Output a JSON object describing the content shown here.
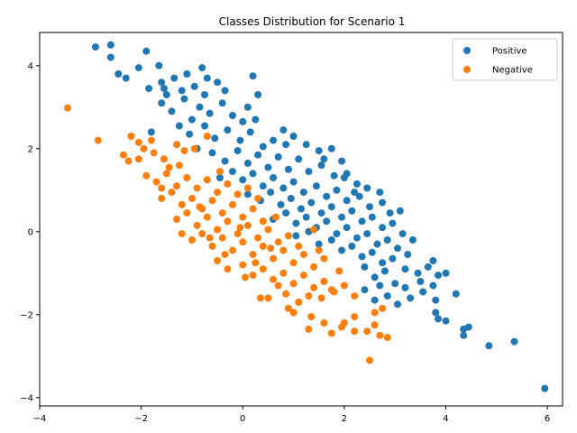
{
  "chart_data": {
    "type": "scatter",
    "title": "Classes Distribution for Scenario 1",
    "xlabel": "",
    "ylabel": "",
    "xlim": [
      -4,
      6.3
    ],
    "ylim": [
      -4.2,
      4.8
    ],
    "xticks": [
      -4,
      -2,
      0,
      2,
      4,
      6
    ],
    "yticks": [
      -4,
      -2,
      0,
      2,
      4
    ],
    "grid": false,
    "legend_position": "top-right",
    "series": [
      {
        "name": "Positive",
        "color": "#1f77b4",
        "points": [
          [
            -2.9,
            4.45
          ],
          [
            -2.6,
            4.5
          ],
          [
            -2.6,
            4.2
          ],
          [
            -2.45,
            3.8
          ],
          [
            -2.3,
            3.7
          ],
          [
            -2.05,
            3.95
          ],
          [
            -1.9,
            4.35
          ],
          [
            -1.85,
            3.45
          ],
          [
            -1.65,
            4.0
          ],
          [
            -1.6,
            3.6
          ],
          [
            -1.55,
            3.45
          ],
          [
            -1.5,
            3.3
          ],
          [
            -1.35,
            3.7
          ],
          [
            -1.2,
            3.4
          ],
          [
            -1.1,
            3.8
          ],
          [
            -0.95,
            3.5
          ],
          [
            -0.8,
            3.95
          ],
          [
            -0.7,
            3.7
          ],
          [
            -0.5,
            3.6
          ],
          [
            -0.35,
            3.4
          ],
          [
            0.2,
            3.75
          ],
          [
            0.3,
            3.3
          ],
          [
            -1.8,
            2.4
          ],
          [
            -1.6,
            3.1
          ],
          [
            -1.4,
            2.9
          ],
          [
            -1.15,
            3.2
          ],
          [
            -1.0,
            2.7
          ],
          [
            -0.85,
            3.0
          ],
          [
            -0.65,
            2.85
          ],
          [
            -0.4,
            3.1
          ],
          [
            -0.2,
            2.8
          ],
          [
            0.1,
            3.0
          ],
          [
            0.25,
            2.7
          ],
          [
            -1.3,
            2.1
          ],
          [
            -1.05,
            2.35
          ],
          [
            -0.9,
            2.0
          ],
          [
            -0.75,
            2.55
          ],
          [
            -0.55,
            2.25
          ],
          [
            -0.3,
            2.45
          ],
          [
            -0.05,
            2.2
          ],
          [
            0.15,
            2.4
          ],
          [
            0.4,
            2.05
          ],
          [
            0.6,
            2.2
          ],
          [
            0.85,
            2.1
          ],
          [
            1.0,
            2.3
          ],
          [
            1.25,
            2.1
          ],
          [
            1.5,
            1.95
          ],
          [
            1.75,
            2.0
          ],
          [
            1.95,
            1.7
          ],
          [
            -0.6,
            1.9
          ],
          [
            -0.35,
            1.7
          ],
          [
            -0.1,
            1.95
          ],
          [
            0.1,
            1.65
          ],
          [
            0.3,
            1.85
          ],
          [
            0.5,
            1.55
          ],
          [
            0.7,
            1.8
          ],
          [
            0.9,
            1.5
          ],
          [
            1.1,
            1.75
          ],
          [
            1.3,
            1.45
          ],
          [
            1.55,
            1.6
          ],
          [
            1.8,
            1.35
          ],
          [
            2.05,
            1.4
          ],
          [
            2.25,
            1.15
          ],
          [
            2.45,
            1.05
          ],
          [
            2.7,
            0.95
          ],
          [
            -0.45,
            1.3
          ],
          [
            -0.2,
            1.45
          ],
          [
            0.0,
            1.25
          ],
          [
            0.2,
            1.4
          ],
          [
            0.4,
            1.1
          ],
          [
            0.6,
            1.3
          ],
          [
            0.8,
            1.05
          ],
          [
            1.0,
            1.2
          ],
          [
            1.2,
            0.95
          ],
          [
            1.45,
            1.1
          ],
          [
            1.65,
            0.85
          ],
          [
            1.85,
            1.0
          ],
          [
            2.05,
            0.75
          ],
          [
            2.3,
            0.85
          ],
          [
            2.5,
            0.6
          ],
          [
            2.75,
            0.7
          ],
          [
            2.9,
            0.45
          ],
          [
            3.1,
            0.5
          ],
          [
            0.1,
            0.9
          ],
          [
            0.35,
            0.75
          ],
          [
            0.55,
            0.95
          ],
          [
            0.75,
            0.65
          ],
          [
            0.95,
            0.8
          ],
          [
            1.15,
            0.55
          ],
          [
            1.35,
            0.7
          ],
          [
            1.55,
            0.45
          ],
          [
            1.75,
            0.6
          ],
          [
            1.95,
            0.35
          ],
          [
            2.15,
            0.5
          ],
          [
            2.35,
            0.25
          ],
          [
            2.55,
            0.35
          ],
          [
            2.75,
            0.1
          ],
          [
            2.95,
            0.2
          ],
          [
            3.15,
            -0.05
          ],
          [
            3.35,
            -0.2
          ],
          [
            0.6,
            0.3
          ],
          [
            0.85,
            0.45
          ],
          [
            1.05,
            0.2
          ],
          [
            1.25,
            0.35
          ],
          [
            1.45,
            0.1
          ],
          [
            1.65,
            0.25
          ],
          [
            1.85,
            -0.05
          ],
          [
            2.05,
            0.1
          ],
          [
            2.25,
            -0.15
          ],
          [
            2.45,
            -0.05
          ],
          [
            2.65,
            -0.3
          ],
          [
            2.85,
            -0.2
          ],
          [
            3.05,
            -0.4
          ],
          [
            3.25,
            -0.55
          ],
          [
            1.5,
            -0.3
          ],
          [
            1.75,
            -0.2
          ],
          [
            1.95,
            -0.45
          ],
          [
            2.15,
            -0.35
          ],
          [
            2.35,
            -0.6
          ],
          [
            2.55,
            -0.5
          ],
          [
            2.75,
            -0.75
          ],
          [
            2.95,
            -0.65
          ],
          [
            3.2,
            -0.9
          ],
          [
            3.45,
            -1.0
          ],
          [
            3.65,
            -0.85
          ],
          [
            3.85,
            -1.05
          ],
          [
            2.4,
            -0.85
          ],
          [
            2.6,
            -1.1
          ],
          [
            2.8,
            -0.95
          ],
          [
            3.0,
            -1.25
          ],
          [
            3.2,
            -1.35
          ],
          [
            3.5,
            -1.2
          ],
          [
            3.75,
            -1.3
          ],
          [
            4.0,
            -1.0
          ],
          [
            4.2,
            -1.5
          ],
          [
            2.4,
            -1.4
          ],
          [
            2.6,
            -1.65
          ],
          [
            2.85,
            -1.55
          ],
          [
            3.05,
            -1.75
          ],
          [
            3.3,
            -1.6
          ],
          [
            3.8,
            -1.65
          ],
          [
            3.8,
            -1.95
          ],
          [
            3.85,
            -2.1
          ],
          [
            4.0,
            -2.15
          ],
          [
            4.35,
            -2.35
          ],
          [
            4.45,
            -2.3
          ],
          [
            4.35,
            -2.5
          ],
          [
            4.85,
            -2.75
          ],
          [
            5.35,
            -2.65
          ],
          [
            5.95,
            -3.78
          ],
          [
            3.75,
            -0.7
          ],
          [
            2.2,
            0.95
          ],
          [
            1.6,
            1.75
          ],
          [
            0.8,
            2.45
          ],
          [
            0.0,
            2.65
          ],
          [
            -0.75,
            3.3
          ],
          [
            -1.25,
            2.55
          ],
          [
            1.3,
            0.0
          ],
          [
            1.05,
            -0.1
          ],
          [
            2.0,
            1.3
          ],
          [
            2.7,
            -1.3
          ],
          [
            3.55,
            -1.45
          ]
        ]
      },
      {
        "name": "Negative",
        "color": "#ff7f0e",
        "points": [
          [
            -3.45,
            2.98
          ],
          [
            -2.85,
            2.2
          ],
          [
            -2.2,
            2.3
          ],
          [
            -2.05,
            2.15
          ],
          [
            -1.95,
            2.0
          ],
          [
            -2.35,
            1.85
          ],
          [
            -2.25,
            1.7
          ],
          [
            -2.05,
            1.75
          ],
          [
            -1.75,
            1.9
          ],
          [
            -1.55,
            1.75
          ],
          [
            -1.3,
            2.1
          ],
          [
            -1.15,
            1.95
          ],
          [
            -0.95,
            2.0
          ],
          [
            -0.7,
            2.3
          ],
          [
            -1.8,
            2.2
          ],
          [
            -1.9,
            1.35
          ],
          [
            -1.7,
            1.2
          ],
          [
            -1.5,
            1.4
          ],
          [
            -1.3,
            1.1
          ],
          [
            -1.1,
            1.3
          ],
          [
            -0.9,
            1.05
          ],
          [
            -0.7,
            1.25
          ],
          [
            -0.5,
            0.95
          ],
          [
            -0.3,
            1.15
          ],
          [
            -0.1,
            0.9
          ],
          [
            0.1,
            1.05
          ],
          [
            -1.6,
            0.8
          ],
          [
            -1.4,
            0.95
          ],
          [
            -1.2,
            0.65
          ],
          [
            -1.0,
            0.8
          ],
          [
            -0.8,
            0.55
          ],
          [
            -0.6,
            0.75
          ],
          [
            -0.4,
            0.45
          ],
          [
            -0.2,
            0.65
          ],
          [
            0.0,
            0.35
          ],
          [
            0.2,
            0.55
          ],
          [
            0.4,
            0.25
          ],
          [
            -1.3,
            0.3
          ],
          [
            -1.1,
            0.45
          ],
          [
            -0.9,
            0.15
          ],
          [
            -0.7,
            0.35
          ],
          [
            -0.5,
            0.05
          ],
          [
            -0.3,
            0.25
          ],
          [
            -0.1,
            -0.05
          ],
          [
            0.1,
            0.15
          ],
          [
            0.3,
            -0.15
          ],
          [
            0.5,
            0.05
          ],
          [
            0.7,
            -0.25
          ],
          [
            0.9,
            -0.1
          ],
          [
            1.1,
            -0.35
          ],
          [
            -1.0,
            -0.2
          ],
          [
            -0.8,
            -0.05
          ],
          [
            -0.6,
            -0.35
          ],
          [
            -0.4,
            -0.15
          ],
          [
            -0.2,
            -0.45
          ],
          [
            0.0,
            -0.25
          ],
          [
            0.2,
            -0.55
          ],
          [
            0.4,
            -0.35
          ],
          [
            0.6,
            -0.65
          ],
          [
            0.8,
            -0.45
          ],
          [
            1.0,
            -0.75
          ],
          [
            1.2,
            -0.55
          ],
          [
            1.4,
            -0.85
          ],
          [
            1.6,
            -0.65
          ],
          [
            -0.5,
            -0.7
          ],
          [
            -0.3,
            -0.9
          ],
          [
            0.0,
            -0.8
          ],
          [
            0.2,
            -1.05
          ],
          [
            0.4,
            -0.9
          ],
          [
            0.6,
            -1.15
          ],
          [
            0.8,
            -1.0
          ],
          [
            1.0,
            -1.25
          ],
          [
            1.2,
            -1.05
          ],
          [
            1.4,
            -1.35
          ],
          [
            1.6,
            -1.2
          ],
          [
            1.8,
            -1.45
          ],
          [
            2.0,
            -1.3
          ],
          [
            2.2,
            -1.55
          ],
          [
            0.35,
            -1.6
          ],
          [
            0.5,
            -1.6
          ],
          [
            0.85,
            -1.5
          ],
          [
            1.1,
            -1.7
          ],
          [
            1.3,
            -1.55
          ],
          [
            1.55,
            -1.6
          ],
          [
            1.75,
            -1.4
          ],
          [
            0.9,
            -1.85
          ],
          [
            1.0,
            -1.95
          ],
          [
            1.35,
            -2.05
          ],
          [
            1.6,
            -2.2
          ],
          [
            1.75,
            -2.45
          ],
          [
            1.95,
            -2.3
          ],
          [
            2.0,
            -2.2
          ],
          [
            2.2,
            -2.05
          ],
          [
            2.2,
            -2.4
          ],
          [
            2.45,
            -2.4
          ],
          [
            2.6,
            -2.25
          ],
          [
            2.6,
            -1.95
          ],
          [
            2.7,
            -2.5
          ],
          [
            2.85,
            -2.55
          ],
          [
            2.75,
            -1.85
          ],
          [
            2.5,
            -3.1
          ],
          [
            1.3,
            -2.35
          ],
          [
            1.4,
            0.05
          ],
          [
            -1.45,
            1.55
          ],
          [
            -1.25,
            1.6
          ],
          [
            -0.45,
            1.45
          ],
          [
            -0.05,
            0.1
          ],
          [
            0.25,
            -0.75
          ],
          [
            0.55,
            -0.4
          ],
          [
            -0.65,
            -0.15
          ],
          [
            -0.85,
            0.6
          ],
          [
            0.65,
            0.35
          ],
          [
            1.5,
            -0.45
          ],
          [
            -1.6,
            1.05
          ],
          [
            -1.2,
            -0.05
          ],
          [
            0.05,
            -1.1
          ],
          [
            0.7,
            -1.3
          ],
          [
            -0.35,
            -0.55
          ],
          [
            1.9,
            -0.95
          ],
          [
            0.3,
            0.8
          ]
        ]
      }
    ]
  }
}
